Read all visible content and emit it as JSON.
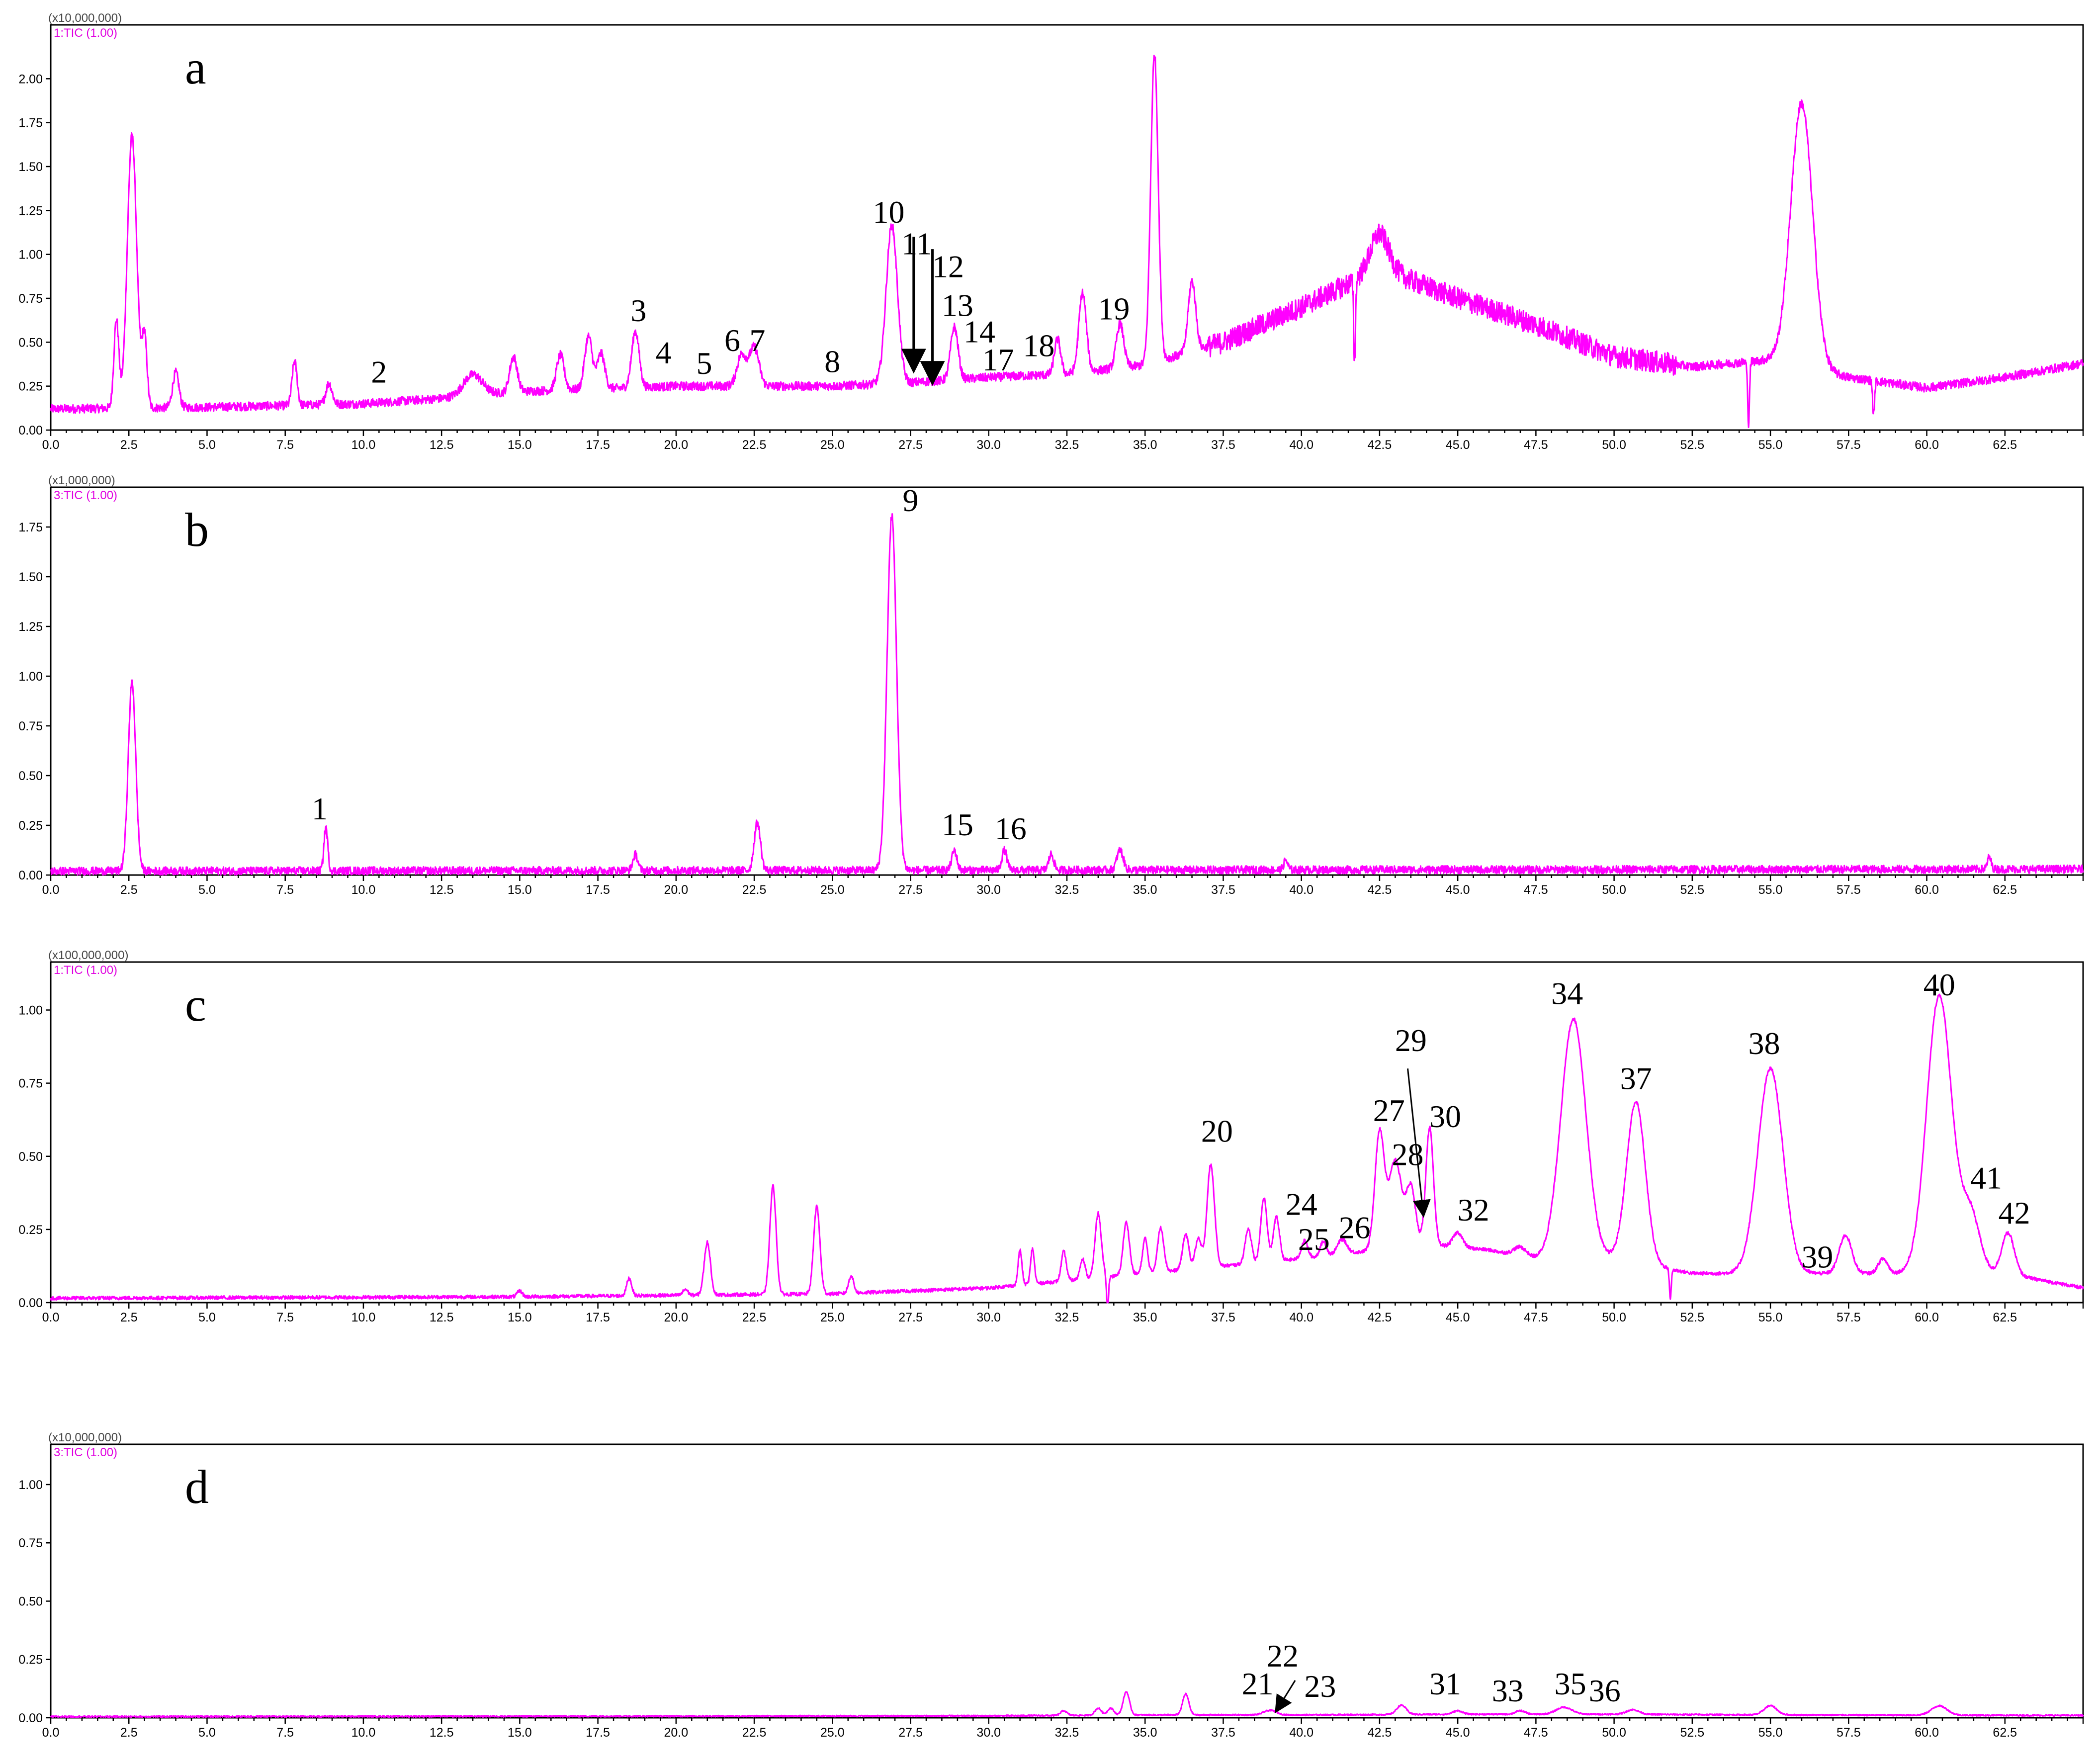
{
  "chart_data": [
    {
      "type": "line",
      "panel_label": "a",
      "scale": "(x10,000,000)",
      "series_label": "1:TIC (1.00)",
      "xlim": [
        0,
        65
      ],
      "ylim": [
        0,
        2.25
      ],
      "yticks": [
        "0.00",
        "0.25",
        "0.50",
        "0.75",
        "1.00",
        "1.25",
        "1.50",
        "1.75",
        "2.00"
      ],
      "baseline": [
        [
          0,
          0.12
        ],
        [
          5,
          0.13
        ],
        [
          10,
          0.15
        ],
        [
          12.5,
          0.18
        ],
        [
          15,
          0.22
        ],
        [
          20,
          0.25
        ],
        [
          25,
          0.25
        ],
        [
          27.5,
          0.27
        ],
        [
          30,
          0.3
        ],
        [
          32.5,
          0.32
        ],
        [
          35,
          0.37
        ],
        [
          37.5,
          0.5
        ],
        [
          40,
          0.7
        ],
        [
          42.5,
          0.92
        ],
        [
          45,
          0.75
        ],
        [
          47.5,
          0.6
        ],
        [
          50,
          0.42
        ],
        [
          52.5,
          0.36
        ],
        [
          55,
          0.4
        ],
        [
          57.5,
          0.3
        ],
        [
          60,
          0.24
        ],
        [
          62.5,
          0.3
        ],
        [
          65,
          0.38
        ]
      ],
      "peaks": [
        [
          2.1,
          0.5,
          0.08
        ],
        [
          2.6,
          1.55,
          0.15
        ],
        [
          3.0,
          0.4,
          0.08
        ],
        [
          4.0,
          0.2,
          0.1
        ],
        [
          7.8,
          0.25,
          0.08
        ],
        [
          8.9,
          0.12,
          0.1
        ],
        [
          13.5,
          0.12,
          0.3
        ],
        [
          14.8,
          0.2,
          0.12
        ],
        [
          16.3,
          0.2,
          0.12
        ],
        [
          17.2,
          0.3,
          0.12
        ],
        [
          17.6,
          0.2,
          0.12
        ],
        [
          18.7,
          0.32,
          0.12
        ],
        [
          22.1,
          0.18,
          0.15
        ],
        [
          22.5,
          0.22,
          0.15
        ],
        [
          26.9,
          0.9,
          0.18
        ],
        [
          28.9,
          0.3,
          0.12
        ],
        [
          32.2,
          0.2,
          0.1
        ],
        [
          33.0,
          0.45,
          0.12
        ],
        [
          34.2,
          0.25,
          0.12
        ],
        [
          35.3,
          1.75,
          0.12
        ],
        [
          36.5,
          0.4,
          0.12
        ],
        [
          42.5,
          0.2,
          0.3
        ],
        [
          56.0,
          1.5,
          0.35
        ]
      ],
      "dips": [
        [
          41.7,
          -0.45
        ],
        [
          54.3,
          -0.35
        ],
        [
          58.3,
          -0.2
        ]
      ],
      "noise": 0.025,
      "annotations": [
        {
          "label": "2",
          "x": 10.5,
          "y": 0.27
        },
        {
          "label": "3",
          "x": 18.8,
          "y": 0.62
        },
        {
          "label": "4",
          "x": 19.6,
          "y": 0.38
        },
        {
          "label": "5",
          "x": 20.9,
          "y": 0.32
        },
        {
          "label": "6",
          "x": 21.8,
          "y": 0.45
        },
        {
          "label": "7",
          "x": 22.6,
          "y": 0.45
        },
        {
          "label": "8",
          "x": 25.0,
          "y": 0.33
        },
        {
          "label": "10",
          "x": 26.8,
          "y": 1.18
        },
        {
          "label": "11",
          "x": 27.7,
          "y": 1.0
        },
        {
          "label": "12",
          "x": 28.7,
          "y": 0.87
        },
        {
          "label": "13",
          "x": 29.0,
          "y": 0.65
        },
        {
          "label": "14",
          "x": 29.7,
          "y": 0.5
        },
        {
          "label": "17",
          "x": 30.3,
          "y": 0.34
        },
        {
          "label": "18",
          "x": 31.6,
          "y": 0.42
        },
        {
          "label": "19",
          "x": 34.0,
          "y": 0.63
        }
      ]
    },
    {
      "type": "line",
      "panel_label": "b",
      "scale": "(x1,000,000)",
      "series_label": "3:TIC (1.00)",
      "xlim": [
        0,
        65
      ],
      "ylim": [
        0,
        1.9
      ],
      "yticks": [
        "0.00",
        "0.25",
        "0.50",
        "0.75",
        "1.00",
        "1.25",
        "1.50",
        "1.75"
      ],
      "baseline": [
        [
          0,
          0.02
        ],
        [
          65,
          0.03
        ]
      ],
      "peaks": [
        [
          2.6,
          0.95,
          0.12
        ],
        [
          8.8,
          0.22,
          0.06
        ],
        [
          18.7,
          0.08,
          0.08
        ],
        [
          22.6,
          0.24,
          0.1
        ],
        [
          26.9,
          1.78,
          0.15
        ],
        [
          28.9,
          0.1,
          0.08
        ],
        [
          30.5,
          0.1,
          0.08
        ],
        [
          32.0,
          0.08,
          0.08
        ],
        [
          34.2,
          0.1,
          0.1
        ],
        [
          39.5,
          0.05,
          0.06
        ],
        [
          62.0,
          0.06,
          0.06
        ]
      ],
      "dips": [],
      "noise": 0.02,
      "annotations": [
        {
          "label": "1",
          "x": 8.6,
          "y": 0.28
        },
        {
          "label": "9",
          "x": 27.5,
          "y": 1.83
        },
        {
          "label": "15",
          "x": 29.0,
          "y": 0.2
        },
        {
          "label": "16",
          "x": 30.7,
          "y": 0.18
        }
      ]
    },
    {
      "type": "line",
      "panel_label": "c",
      "scale": "(x100,000,000)",
      "series_label": "1:TIC (1.00)",
      "xlim": [
        0,
        65
      ],
      "ylim": [
        0,
        1.13
      ],
      "yticks": [
        "0.00",
        "0.25",
        "0.50",
        "0.75",
        "1.00"
      ],
      "baseline": [
        [
          0,
          0.015
        ],
        [
          15,
          0.02
        ],
        [
          25,
          0.03
        ],
        [
          30,
          0.05
        ],
        [
          35,
          0.1
        ],
        [
          40,
          0.15
        ],
        [
          44,
          0.2
        ],
        [
          46,
          0.18
        ],
        [
          47.5,
          0.15
        ],
        [
          50,
          0.15
        ],
        [
          52.5,
          0.1
        ],
        [
          55,
          0.1
        ],
        [
          57.5,
          0.1
        ],
        [
          60,
          0.1
        ],
        [
          62.5,
          0.1
        ],
        [
          65,
          0.05
        ]
      ],
      "peaks": [
        [
          15.0,
          0.02,
          0.08
        ],
        [
          18.5,
          0.06,
          0.08
        ],
        [
          20.3,
          0.02,
          0.08
        ],
        [
          21.0,
          0.18,
          0.1
        ],
        [
          23.1,
          0.37,
          0.1
        ],
        [
          24.5,
          0.3,
          0.1
        ],
        [
          25.6,
          0.06,
          0.08
        ],
        [
          31.0,
          0.12,
          0.06
        ],
        [
          31.4,
          0.12,
          0.06
        ],
        [
          32.4,
          0.1,
          0.08
        ],
        [
          33.0,
          0.07,
          0.08
        ],
        [
          33.5,
          0.22,
          0.1
        ],
        [
          34.4,
          0.18,
          0.1
        ],
        [
          35.0,
          0.12,
          0.08
        ],
        [
          35.5,
          0.15,
          0.1
        ],
        [
          36.3,
          0.12,
          0.1
        ],
        [
          36.7,
          0.1,
          0.1
        ],
        [
          37.1,
          0.35,
          0.12
        ],
        [
          38.3,
          0.12,
          0.1
        ],
        [
          38.8,
          0.22,
          0.1
        ],
        [
          39.2,
          0.15,
          0.1
        ],
        [
          40.1,
          0.06,
          0.1
        ],
        [
          40.7,
          0.05,
          0.1
        ],
        [
          41.3,
          0.05,
          0.15
        ],
        [
          42.5,
          0.4,
          0.15
        ],
        [
          43.0,
          0.3,
          0.2
        ],
        [
          43.5,
          0.2,
          0.15
        ],
        [
          44.1,
          0.4,
          0.12
        ],
        [
          45.0,
          0.05,
          0.15
        ],
        [
          47.0,
          0.03,
          0.2
        ],
        [
          48.7,
          0.82,
          0.4
        ],
        [
          50.7,
          0.55,
          0.3
        ],
        [
          55.0,
          0.7,
          0.4
        ],
        [
          57.4,
          0.13,
          0.2
        ],
        [
          58.6,
          0.05,
          0.15
        ],
        [
          60.4,
          0.95,
          0.4
        ],
        [
          61.4,
          0.2,
          0.3
        ],
        [
          62.6,
          0.14,
          0.2
        ]
      ],
      "dips": [
        [
          33.8,
          -0.12
        ],
        [
          51.8,
          -0.1
        ]
      ],
      "noise": 0.006,
      "annotations": [
        {
          "label": "20",
          "x": 37.3,
          "y": 0.55
        },
        {
          "label": "24",
          "x": 40.0,
          "y": 0.3
        },
        {
          "label": "25",
          "x": 40.4,
          "y": 0.18
        },
        {
          "label": "26",
          "x": 41.7,
          "y": 0.22
        },
        {
          "label": "27",
          "x": 42.8,
          "y": 0.62
        },
        {
          "label": "28",
          "x": 43.4,
          "y": 0.47
        },
        {
          "label": "29",
          "x": 43.5,
          "y": 0.86
        },
        {
          "label": "30",
          "x": 44.6,
          "y": 0.6
        },
        {
          "label": "32",
          "x": 45.5,
          "y": 0.28
        },
        {
          "label": "34",
          "x": 48.5,
          "y": 1.02
        },
        {
          "label": "37",
          "x": 50.7,
          "y": 0.73
        },
        {
          "label": "38",
          "x": 54.8,
          "y": 0.85
        },
        {
          "label": "39",
          "x": 56.5,
          "y": 0.12
        },
        {
          "label": "40",
          "x": 60.4,
          "y": 1.05
        },
        {
          "label": "41",
          "x": 61.9,
          "y": 0.39
        },
        {
          "label": "42",
          "x": 62.8,
          "y": 0.27
        }
      ]
    },
    {
      "type": "line",
      "panel_label": "d",
      "scale": "(x10,000,000)",
      "series_label": "3:TIC (1.00)",
      "xlim": [
        0,
        65
      ],
      "ylim": [
        0,
        1.13
      ],
      "yticks": [
        "0.00",
        "0.25",
        "0.50",
        "0.75",
        "1.00"
      ],
      "baseline": [
        [
          0,
          0.005
        ],
        [
          30,
          0.008
        ],
        [
          35,
          0.012
        ],
        [
          40,
          0.012
        ],
        [
          45,
          0.015
        ],
        [
          50,
          0.015
        ],
        [
          55,
          0.012
        ],
        [
          65,
          0.01
        ]
      ],
      "peaks": [
        [
          32.4,
          0.02,
          0.1
        ],
        [
          33.5,
          0.03,
          0.1
        ],
        [
          33.9,
          0.03,
          0.1
        ],
        [
          34.4,
          0.1,
          0.1
        ],
        [
          36.3,
          0.09,
          0.1
        ],
        [
          39.0,
          0.02,
          0.2
        ],
        [
          43.2,
          0.04,
          0.15
        ],
        [
          45.0,
          0.015,
          0.15
        ],
        [
          47.0,
          0.015,
          0.15
        ],
        [
          48.4,
          0.03,
          0.25
        ],
        [
          50.6,
          0.02,
          0.2
        ],
        [
          55.0,
          0.04,
          0.2
        ],
        [
          60.4,
          0.04,
          0.25
        ]
      ],
      "dips": [],
      "noise": 0.003,
      "annotations": [
        {
          "label": "21",
          "x": 38.6,
          "y": 0.1
        },
        {
          "label": "22",
          "x": 39.4,
          "y": 0.22
        },
        {
          "label": "23",
          "x": 40.6,
          "y": 0.09
        },
        {
          "label": "31",
          "x": 44.6,
          "y": 0.1
        },
        {
          "label": "33",
          "x": 46.6,
          "y": 0.07
        },
        {
          "label": "35",
          "x": 48.6,
          "y": 0.1
        },
        {
          "label": "36",
          "x": 49.7,
          "y": 0.07
        }
      ]
    }
  ],
  "x_ticks": [
    "0.0",
    "2.5",
    "5.0",
    "7.5",
    "10.0",
    "12.5",
    "15.0",
    "17.5",
    "20.0",
    "22.5",
    "25.0",
    "27.5",
    "30.0",
    "32.5",
    "35.0",
    "37.5",
    "40.0",
    "42.5",
    "45.0",
    "47.5",
    "50.0",
    "52.5",
    "55.0",
    "57.5",
    "60.0",
    "62.5"
  ],
  "arrows": [
    {
      "panel": 0,
      "from": [
        27.6,
        1.1
      ],
      "to": [
        27.6,
        0.35
      ]
    },
    {
      "panel": 0,
      "from": [
        28.2,
        1.03
      ],
      "to": [
        28.2,
        0.28
      ]
    },
    {
      "panel": 2,
      "from": [
        43.4,
        0.8
      ],
      "to": [
        43.9,
        0.3
      ]
    },
    {
      "panel": 3,
      "from": [
        39.8,
        0.16
      ],
      "to": [
        39.2,
        0.03
      ]
    }
  ],
  "colors": {
    "trace": "#ff00ff",
    "axis": "#000000"
  }
}
